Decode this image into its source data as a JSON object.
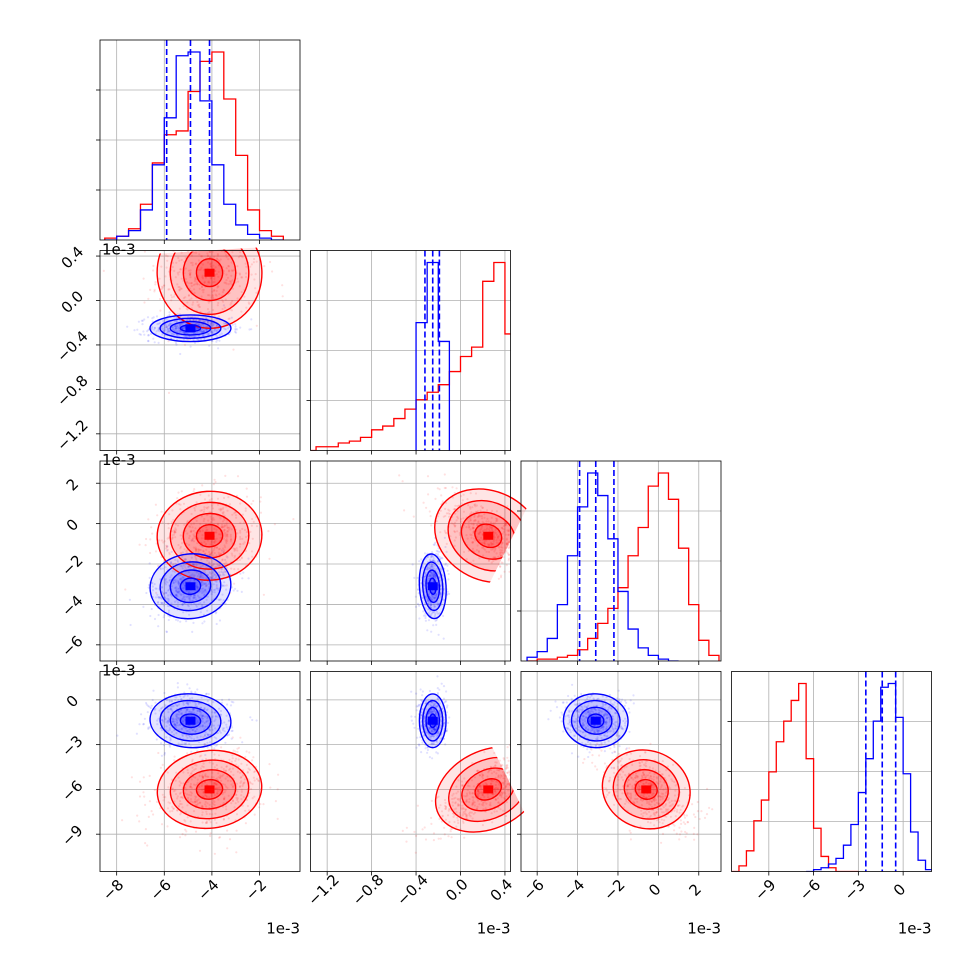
{
  "chart_data": {
    "type": "corner",
    "grid": true,
    "colors": {
      "series_a": "#ff0000",
      "series_b": "#0000ff",
      "frame": "#000000",
      "grid": "#b0b0b0"
    },
    "series": [
      {
        "color": "#ff0000",
        "mean": [
          -0.0041,
          0.00025,
          -0.0006,
          -0.006
        ],
        "std": [
          0.0011,
          0.00025,
          0.0011,
          0.0013
        ],
        "histograms": [
          {
            "edges": [
              -0.0085,
              -0.008,
              -0.0075,
              -0.007,
              -0.0065,
              -0.006,
              -0.0055,
              -0.005,
              -0.0045,
              -0.004,
              -0.0035,
              -0.003,
              -0.0025,
              -0.002,
              -0.0015,
              -0.001
            ],
            "counts": [
              0.01,
              0.02,
              0.06,
              0.19,
              0.41,
              0.56,
              0.58,
              0.79,
              0.95,
              1.0,
              0.75,
              0.45,
              0.16,
              0.05,
              0.02
            ]
          },
          {
            "edges": [
              -0.0014,
              -0.0013,
              -0.0012,
              -0.0011,
              -0.001,
              -0.0009,
              -0.0008,
              -0.0007,
              -0.0006,
              -0.0005,
              -0.0004,
              -0.0003,
              -0.0002,
              -0.0001,
              0.0,
              0.0001,
              0.0002,
              0.0003,
              0.0004,
              0.0005
            ],
            "counts": [
              0.0,
              0.02,
              0.02,
              0.04,
              0.05,
              0.07,
              0.11,
              0.13,
              0.17,
              0.22,
              0.27,
              0.31,
              0.35,
              0.42,
              0.5,
              0.55,
              0.9,
              1.0,
              0.62,
              0.08
            ]
          },
          {
            "edges": [
              -0.0065,
              -0.006,
              -0.0055,
              -0.005,
              -0.0045,
              -0.004,
              -0.0035,
              -0.003,
              -0.0025,
              -0.002,
              -0.0015,
              -0.001,
              -0.0005,
              0.0,
              0.0005,
              0.001,
              0.0015,
              0.002,
              0.0025,
              0.003
            ],
            "counts": [
              0.0,
              0.01,
              0.01,
              0.02,
              0.03,
              0.06,
              0.12,
              0.2,
              0.28,
              0.39,
              0.56,
              0.71,
              0.93,
              1.0,
              0.86,
              0.6,
              0.3,
              0.11,
              0.03
            ]
          },
          {
            "edges": [
              -0.0115,
              -0.011,
              -0.0105,
              -0.01,
              -0.0095,
              -0.009,
              -0.0085,
              -0.008,
              -0.0075,
              -0.007,
              -0.0065,
              -0.006,
              -0.0055,
              -0.005,
              -0.0045,
              -0.004,
              -0.0035,
              -0.003
            ],
            "counts": [
              0.0,
              0.03,
              0.11,
              0.27,
              0.38,
              0.53,
              0.69,
              0.8,
              0.91,
              1.0,
              0.6,
              0.23,
              0.08,
              0.02,
              0.0,
              0.0,
              0.0
            ]
          }
        ]
      },
      {
        "color": "#0000ff",
        "mean": [
          -0.0049,
          -0.00025,
          -0.0031,
          -0.0014
        ],
        "std": [
          0.00085,
          6e-05,
          0.0008,
          0.0009
        ],
        "quantiles": [
          [
            -0.0059,
            -0.0049,
            -0.0041
          ],
          [
            -0.00032,
            -0.00025,
            -0.00019
          ],
          [
            -0.0039,
            -0.0031,
            -0.0022
          ],
          [
            -0.0025,
            -0.0014,
            -0.0005
          ]
        ],
        "histograms": [
          {
            "edges": [
              -0.0085,
              -0.008,
              -0.0075,
              -0.007,
              -0.0065,
              -0.006,
              -0.0055,
              -0.005,
              -0.0045,
              -0.004,
              -0.0035,
              -0.003,
              -0.0025,
              -0.002,
              -0.0015,
              -0.001
            ],
            "counts": [
              0.0,
              0.02,
              0.05,
              0.16,
              0.4,
              0.65,
              0.98,
              1.0,
              0.74,
              0.4,
              0.19,
              0.08,
              0.03,
              0.01,
              0.0
            ]
          },
          {
            "edges": [
              -0.0004,
              -0.0003,
              -0.0002,
              -0.0001
            ],
            "counts": [
              0.68,
              1.0,
              0.58
            ]
          },
          {
            "edges": [
              -0.0065,
              -0.006,
              -0.0055,
              -0.005,
              -0.0045,
              -0.004,
              -0.0035,
              -0.003,
              -0.0025,
              -0.002,
              -0.0015,
              -0.001,
              -0.0005,
              0.0,
              0.0005,
              0.001
            ],
            "counts": [
              0.02,
              0.05,
              0.12,
              0.3,
              0.56,
              0.82,
              1.0,
              0.88,
              0.65,
              0.37,
              0.17,
              0.07,
              0.03,
              0.01,
              0.0
            ]
          },
          {
            "edges": [
              -0.0065,
              -0.006,
              -0.0055,
              -0.005,
              -0.0045,
              -0.004,
              -0.0035,
              -0.003,
              -0.0025,
              -0.002,
              -0.0015,
              -0.001,
              -0.0005,
              0.0,
              0.0005,
              0.001,
              0.0015,
              0.002
            ],
            "counts": [
              0.0,
              0.01,
              0.02,
              0.04,
              0.07,
              0.14,
              0.25,
              0.42,
              0.6,
              0.8,
              0.98,
              1.0,
              0.82,
              0.52,
              0.21,
              0.06,
              0.01
            ]
          }
        ]
      }
    ],
    "axes": [
      {
        "range": [
          -0.0087,
          -0.0003
        ],
        "ticks": [
          -0.008,
          -0.006,
          -0.004,
          -0.002
        ],
        "tick_labels": [
          "−8",
          "−6",
          "−4",
          "−2"
        ],
        "offset_label": "1e-3"
      },
      {
        "range": [
          -0.00135,
          0.00045
        ],
        "ticks": [
          -0.0012,
          -0.0008,
          -0.0004,
          0.0,
          0.0004
        ],
        "tick_labels": [
          "−1.2",
          "−0.8",
          "−0.4",
          "0.0",
          "0.4"
        ],
        "offset_label": "1e-3"
      },
      {
        "range": [
          -0.0068,
          0.0031
        ],
        "ticks": [
          -0.006,
          -0.004,
          -0.002,
          0.0,
          0.002
        ],
        "tick_labels": [
          "−6",
          "−4",
          "−2",
          "0",
          "2"
        ],
        "offset_label": "1e-3"
      },
      {
        "range": [
          -0.0115,
          0.0019
        ],
        "ticks": [
          -0.009,
          -0.006,
          -0.003,
          0.0
        ],
        "tick_labels": [
          "−9",
          "−6",
          "−3",
          "0"
        ],
        "offset_label": "1e-3"
      }
    ]
  }
}
